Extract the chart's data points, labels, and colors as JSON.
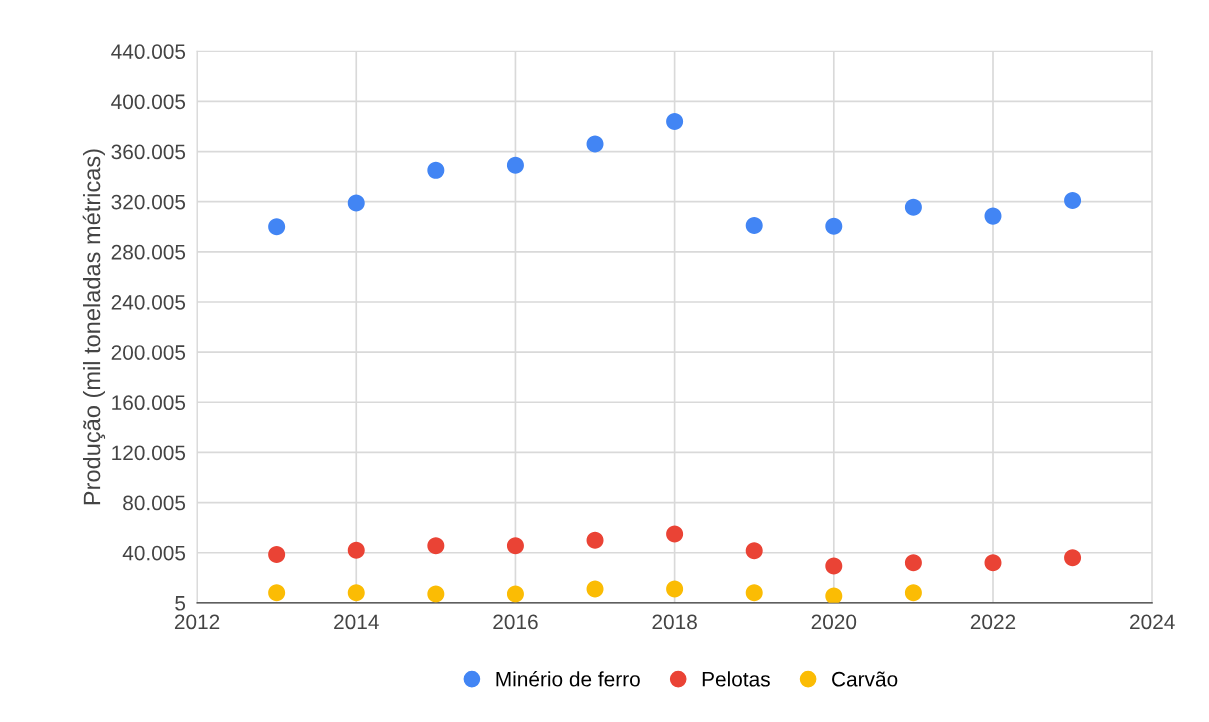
{
  "chart_data": {
    "type": "scatter",
    "ylabel": "Produção (mil toneladas métricas)",
    "x": [
      2013,
      2014,
      2015,
      2016,
      2017,
      2018,
      2019,
      2020,
      2021,
      2022,
      2023
    ],
    "series": [
      {
        "name": "Minério de ferro",
        "color": "#4285f4",
        "values": [
          300000,
          319000,
          345000,
          349000,
          366000,
          384000,
          301000,
          300500,
          315500,
          308500,
          321000
        ]
      },
      {
        "name": "Pelotas",
        "color": "#ea4335",
        "values": [
          38500,
          42000,
          45500,
          45500,
          50000,
          55000,
          41500,
          29500,
          32000,
          32000,
          36000
        ]
      },
      {
        "name": "Carvão",
        "color": "#fbbc04",
        "values": [
          8000,
          8000,
          7000,
          7000,
          11000,
          11000,
          8000,
          5500,
          8000,
          null,
          null
        ]
      }
    ],
    "xlim": [
      2012,
      2024
    ],
    "xticks": [
      2012,
      2014,
      2016,
      2018,
      2020,
      2022,
      2024
    ],
    "ylim": [
      5,
      440005
    ],
    "yticks": [
      {
        "value": 5,
        "label": "5"
      },
      {
        "value": 40005,
        "label": "40.005"
      },
      {
        "value": 80005,
        "label": "80.005"
      },
      {
        "value": 120005,
        "label": "120.005"
      },
      {
        "value": 160005,
        "label": "160.005"
      },
      {
        "value": 200005,
        "label": "200.005"
      },
      {
        "value": 240005,
        "label": "240.005"
      },
      {
        "value": 280005,
        "label": "280.005"
      },
      {
        "value": 320005,
        "label": "320.005"
      },
      {
        "value": 360005,
        "label": "360.005"
      },
      {
        "value": 400005,
        "label": "400.005"
      },
      {
        "value": 440005,
        "label": "440.005"
      }
    ],
    "grid": true,
    "legend": "bottom",
    "marker": "circle"
  }
}
